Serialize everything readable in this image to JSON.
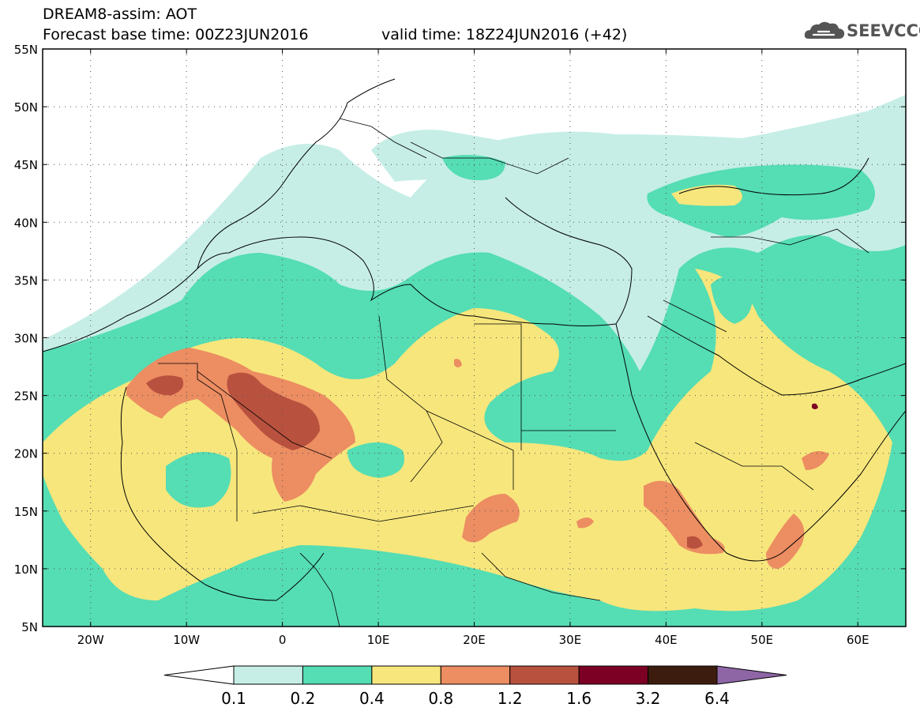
{
  "header": {
    "line1": "DREAM8-assim: AOT",
    "line2": "Forecast base time: 00Z23JUN2016",
    "valid": "valid time: 18Z24JUN2016 (+42)"
  },
  "logo": {
    "text": "SEEVCCC",
    "icon": "cloud-icon"
  },
  "map": {
    "lon_range": [
      -25,
      65
    ],
    "lat_range": [
      5,
      55
    ],
    "lat_ticks": [
      "5N",
      "10N",
      "15N",
      "20N",
      "25N",
      "30N",
      "35N",
      "40N",
      "45N",
      "50N",
      "55N"
    ],
    "lon_ticks": [
      "20W",
      "10W",
      "0",
      "10E",
      "20E",
      "30E",
      "40E",
      "50E",
      "60E"
    ],
    "grid": "dotted"
  },
  "colorbar": {
    "labels": [
      "0.1",
      "0.2",
      "0.4",
      "0.8",
      "1.2",
      "1.6",
      "3.2",
      "6.4"
    ],
    "colors": [
      "#ffffff",
      "#c6eee6",
      "#55ddb4",
      "#f7e67c",
      "#ec8d62",
      "#b9513f",
      "#7b0024",
      "#3b1c0e",
      "#8e66a6"
    ]
  }
}
